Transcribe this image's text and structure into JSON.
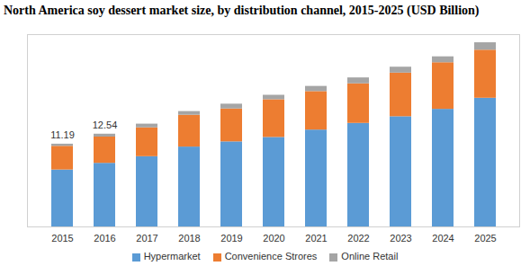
{
  "chart_data": {
    "type": "bar",
    "title": "North America soy dessert market size, by distribution channel, 2015-2025 (USD Billion)",
    "categories": [
      "2015",
      "2016",
      "2017",
      "2018",
      "2019",
      "2020",
      "2021",
      "2022",
      "2023",
      "2024",
      "2025"
    ],
    "series": [
      {
        "name": "Hypermarket",
        "color": "#5b9bd5",
        "values": [
          7.7,
          8.6,
          9.5,
          10.8,
          11.5,
          12.1,
          13.1,
          14.0,
          14.9,
          15.9,
          17.4
        ]
      },
      {
        "name": "Convenience Strores",
        "color": "#ed7d31",
        "values": [
          3.2,
          3.55,
          3.9,
          4.3,
          4.45,
          5.1,
          5.2,
          5.35,
          5.9,
          6.3,
          6.5
        ]
      },
      {
        "name": "Online Retail",
        "color": "#a5a5a5",
        "values": [
          0.29,
          0.39,
          0.5,
          0.5,
          0.65,
          0.6,
          0.7,
          0.8,
          0.8,
          0.8,
          1.0
        ]
      }
    ],
    "annotations": [
      {
        "text": "11.19",
        "x": "2015",
        "y": 11.19
      },
      {
        "text": "12.54",
        "x": "2016",
        "y": 12.54
      }
    ],
    "ylim": [
      0,
      26
    ],
    "yticks": [],
    "stacked": true,
    "tick_labels": "x",
    "grid": false,
    "legend": "bottom"
  }
}
